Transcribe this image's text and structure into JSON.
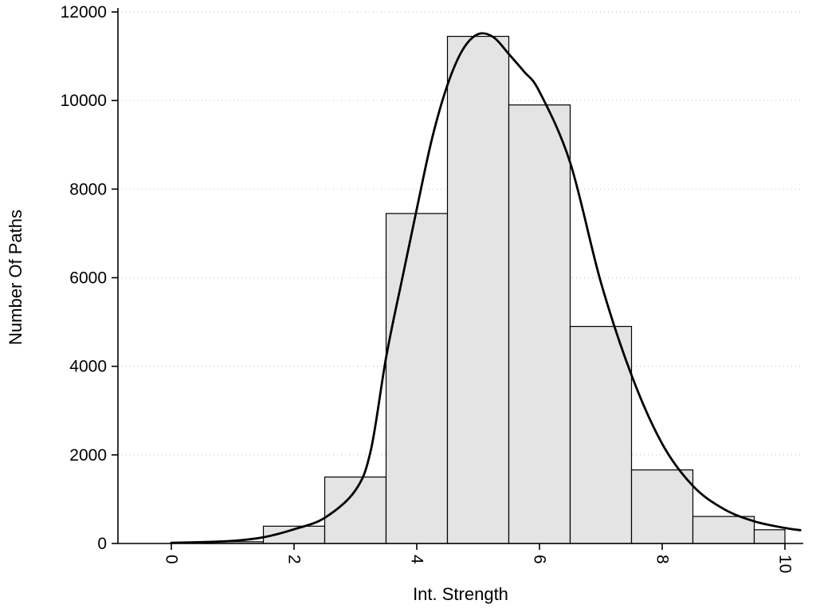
{
  "chart_data": {
    "type": "histogram",
    "title": "",
    "xlabel": "Int. Strength",
    "ylabel": "Number Of Paths",
    "xlim": [
      0,
      10
    ],
    "ylim": [
      0,
      12000
    ],
    "x_ticks": [
      0,
      2,
      4,
      6,
      8,
      10
    ],
    "y_ticks": [
      0,
      2000,
      4000,
      6000,
      8000,
      10000,
      12000
    ],
    "grid": "horizontal-dotted",
    "legend_position": "none",
    "bar_fill": "#e4e4e4",
    "bar_stroke": "#000000",
    "grid_color": "#bdbdbd",
    "curve_color": "#000000",
    "bins": [
      {
        "center": 1,
        "left": 0.5,
        "right": 1.5,
        "count": 40
      },
      {
        "center": 2,
        "left": 1.5,
        "right": 2.5,
        "count": 390
      },
      {
        "center": 3,
        "left": 2.5,
        "right": 3.5,
        "count": 1500
      },
      {
        "center": 4,
        "left": 3.5,
        "right": 4.5,
        "count": 7450
      },
      {
        "center": 5,
        "left": 4.5,
        "right": 5.5,
        "count": 11450
      },
      {
        "center": 6,
        "left": 5.5,
        "right": 6.5,
        "count": 9900
      },
      {
        "center": 7,
        "left": 6.5,
        "right": 7.5,
        "count": 4900
      },
      {
        "center": 8,
        "left": 7.5,
        "right": 8.5,
        "count": 1660
      },
      {
        "center": 9,
        "left": 8.5,
        "right": 9.5,
        "count": 610
      },
      {
        "center": 10,
        "left": 9.5,
        "right": 10.0,
        "count": 310
      }
    ],
    "density_curve": {
      "x": [
        0.0,
        0.5,
        1.0,
        1.5,
        2.0,
        2.5,
        3.0,
        3.25,
        3.5,
        3.75,
        4.0,
        4.25,
        4.5,
        4.75,
        5.0,
        5.25,
        5.5,
        5.75,
        6.0,
        6.5,
        7.0,
        7.5,
        8.0,
        8.5,
        9.0,
        9.5,
        10.0,
        10.25
      ],
      "y": [
        15,
        30,
        60,
        140,
        320,
        580,
        1200,
        2100,
        4200,
        5900,
        7550,
        9150,
        10350,
        11150,
        11500,
        11430,
        11050,
        10650,
        10200,
        8600,
        5900,
        3800,
        2250,
        1300,
        780,
        500,
        350,
        300
      ]
    }
  }
}
